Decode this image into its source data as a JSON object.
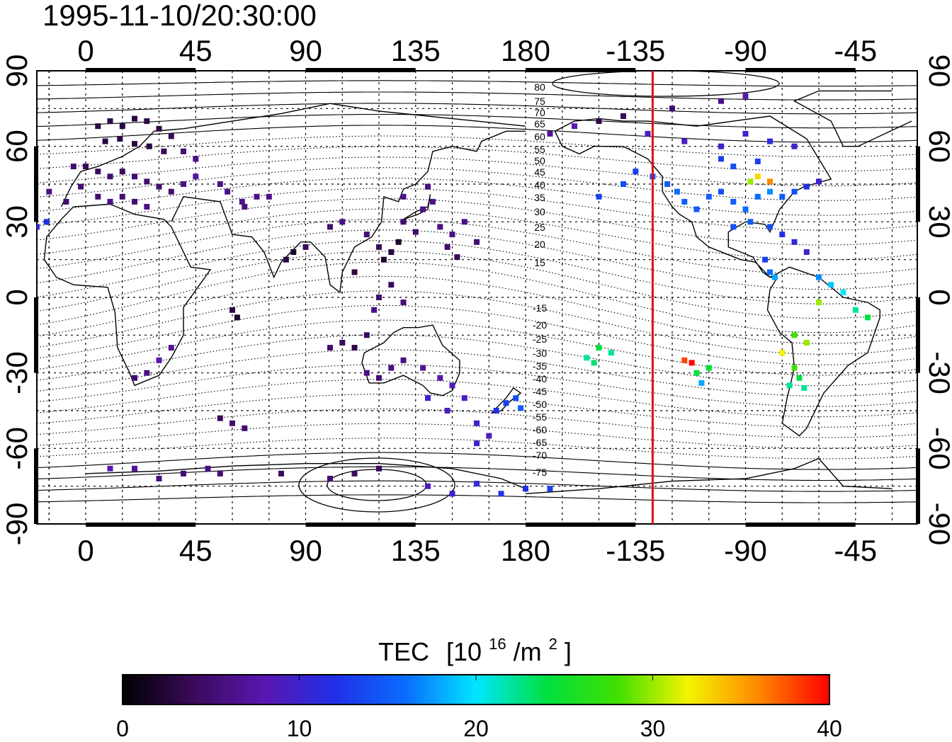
{
  "title": "1995-11-10/20:30:00",
  "colorbar": {
    "label_main": "TEC",
    "label_unit_prefix": "[10",
    "label_unit_exp": "16",
    "label_unit_mid": "/m",
    "label_unit_exp2": "2",
    "label_unit_suffix": "]",
    "min": 0,
    "max": 40,
    "ticks": [
      "0",
      "10",
      "20",
      "30",
      "40"
    ],
    "stops": [
      "#000000",
      "#3a0a5a",
      "#5a16b0",
      "#2030e8",
      "#0a6cff",
      "#00e6ff",
      "#00e040",
      "#40e000",
      "#f4f400",
      "#ff8800",
      "#ff0000"
    ]
  },
  "map": {
    "top_lon_labels": [
      "0",
      "45",
      "90",
      "135",
      "180",
      "-135",
      "-90",
      "-45"
    ],
    "bottom_lon_labels": [
      "0",
      "45",
      "90",
      "135",
      "180",
      "-135",
      "-90",
      "-45"
    ],
    "left_lat_labels": [
      "90",
      "60",
      "30",
      "0",
      "-30",
      "-60",
      "-90"
    ],
    "right_lat_labels": [
      "90",
      "60",
      "30",
      "0",
      "-30",
      "-60",
      "-90"
    ],
    "contour_labels": [
      "80",
      "75",
      "70",
      "65",
      "60",
      "55",
      "50",
      "45",
      "40",
      "35",
      "30",
      "25",
      "20",
      "15",
      "-15",
      "-20",
      "-25",
      "-30",
      "-35",
      "-40",
      "-45",
      "-50",
      "-55",
      "-60",
      "-65",
      "-70",
      "-75"
    ],
    "terminator_lon": -128,
    "terminator_color": "#e01010"
  },
  "chart_data": {
    "type": "scatter",
    "title": "1995-11-10/20:30:00",
    "xlabel": "",
    "ylabel": "",
    "xlim_lon": [
      -20,
      -35
    ],
    "ylim": [
      -90,
      90
    ],
    "value_label": "TEC [10^16/m^2]",
    "value_range": [
      0,
      40
    ],
    "points": [
      [
        5,
        68,
        3
      ],
      [
        10,
        70,
        3
      ],
      [
        15,
        68,
        3
      ],
      [
        20,
        71,
        3
      ],
      [
        25,
        70,
        3
      ],
      [
        30,
        67,
        3
      ],
      [
        35,
        64,
        4
      ],
      [
        8,
        62,
        3
      ],
      [
        14,
        63,
        3
      ],
      [
        20,
        61,
        3
      ],
      [
        26,
        60,
        3
      ],
      [
        32,
        58,
        4
      ],
      [
        40,
        58,
        5
      ],
      [
        45,
        55,
        6
      ],
      [
        -5,
        52,
        5
      ],
      [
        0,
        52,
        4
      ],
      [
        5,
        50,
        4
      ],
      [
        10,
        48,
        5
      ],
      [
        15,
        50,
        4
      ],
      [
        20,
        48,
        5
      ],
      [
        25,
        46,
        5
      ],
      [
        30,
        44,
        5
      ],
      [
        35,
        42,
        5
      ],
      [
        40,
        45,
        6
      ],
      [
        45,
        48,
        7
      ],
      [
        -2,
        44,
        5
      ],
      [
        5,
        40,
        5
      ],
      [
        10,
        38,
        6
      ],
      [
        15,
        40,
        5
      ],
      [
        20,
        38,
        5
      ],
      [
        25,
        36,
        6
      ],
      [
        -8,
        38,
        5
      ],
      [
        -15,
        42,
        6
      ],
      [
        -20,
        28,
        11
      ],
      [
        -16,
        30,
        12
      ],
      [
        70,
        40,
        6
      ],
      [
        64,
        38,
        6
      ],
      [
        58,
        42,
        6
      ],
      [
        65,
        36,
        6
      ],
      [
        75,
        40,
        6
      ],
      [
        55,
        45,
        6
      ],
      [
        85,
        18,
        2
      ],
      [
        82,
        15,
        3
      ],
      [
        90,
        20,
        4
      ],
      [
        100,
        28,
        5
      ],
      [
        105,
        30,
        6
      ],
      [
        115,
        25,
        5
      ],
      [
        120,
        20,
        4
      ],
      [
        125,
        18,
        3
      ],
      [
        122,
        15,
        2
      ],
      [
        128,
        22,
        2
      ],
      [
        130,
        30,
        5
      ],
      [
        138,
        35,
        6
      ],
      [
        142,
        38,
        6
      ],
      [
        135,
        26,
        5
      ],
      [
        145,
        28,
        6
      ],
      [
        150,
        25,
        6
      ],
      [
        155,
        30,
        6
      ],
      [
        148,
        20,
        5
      ],
      [
        152,
        16,
        4
      ],
      [
        160,
        22,
        5
      ],
      [
        130,
        40,
        6
      ],
      [
        140,
        44,
        6
      ],
      [
        110,
        10,
        3
      ],
      [
        118,
        -5,
        6
      ],
      [
        120,
        0,
        5
      ],
      [
        125,
        5,
        4
      ],
      [
        130,
        -2,
        5
      ],
      [
        115,
        -15,
        4
      ],
      [
        110,
        -20,
        3
      ],
      [
        105,
        -18,
        4
      ],
      [
        100,
        -20,
        5
      ],
      [
        115,
        -30,
        6
      ],
      [
        120,
        -32,
        5
      ],
      [
        125,
        -28,
        6
      ],
      [
        130,
        -25,
        6
      ],
      [
        138,
        -28,
        7
      ],
      [
        145,
        -32,
        8
      ],
      [
        150,
        -35,
        9
      ],
      [
        140,
        -40,
        10
      ],
      [
        155,
        -40,
        9
      ],
      [
        148,
        -45,
        9
      ],
      [
        160,
        -50,
        10
      ],
      [
        168,
        -45,
        12
      ],
      [
        172,
        -42,
        13
      ],
      [
        176,
        -40,
        14
      ],
      [
        178,
        -44,
        15
      ],
      [
        165,
        -55,
        9
      ],
      [
        160,
        -58,
        10
      ],
      [
        60,
        -50,
        5
      ],
      [
        55,
        -48,
        4
      ],
      [
        65,
        -52,
        5
      ],
      [
        30,
        -25,
        8
      ],
      [
        25,
        -30,
        6
      ],
      [
        20,
        -32,
        5
      ],
      [
        35,
        -20,
        7
      ],
      [
        60,
        -5,
        3
      ],
      [
        62,
        -8,
        2
      ],
      [
        55,
        -70,
        5
      ],
      [
        50,
        -68,
        6
      ],
      [
        40,
        -70,
        5
      ],
      [
        30,
        -72,
        6
      ],
      [
        20,
        -68,
        7
      ],
      [
        10,
        -68,
        8
      ],
      [
        80,
        -70,
        4
      ],
      [
        100,
        -72,
        5
      ],
      [
        110,
        -70,
        4
      ],
      [
        120,
        -68,
        4
      ],
      [
        140,
        -75,
        9
      ],
      [
        150,
        -78,
        10
      ],
      [
        160,
        -74,
        11
      ],
      [
        170,
        -78,
        12
      ],
      [
        180,
        -76,
        12
      ],
      [
        190,
        -76,
        13
      ],
      [
        205,
        -24,
        22
      ],
      [
        210,
        -20,
        24
      ],
      [
        208,
        -26,
        23
      ],
      [
        215,
        -22,
        22
      ],
      [
        -150,
        40,
        13
      ],
      [
        -140,
        45,
        14
      ],
      [
        -135,
        50,
        13
      ],
      [
        -128,
        48,
        14
      ],
      [
        -122,
        45,
        15
      ],
      [
        -118,
        42,
        16
      ],
      [
        -115,
        38,
        15
      ],
      [
        -110,
        35,
        15
      ],
      [
        -105,
        40,
        15
      ],
      [
        -100,
        42,
        14
      ],
      [
        -95,
        38,
        15
      ],
      [
        -90,
        35,
        16
      ],
      [
        -85,
        40,
        16
      ],
      [
        -80,
        42,
        17
      ],
      [
        -75,
        40,
        15
      ],
      [
        -70,
        42,
        14
      ],
      [
        -65,
        44,
        12
      ],
      [
        -60,
        46,
        10
      ],
      [
        -88,
        46,
        30
      ],
      [
        -85,
        48,
        33
      ],
      [
        -80,
        46,
        36
      ],
      [
        -95,
        28,
        14
      ],
      [
        -88,
        30,
        15
      ],
      [
        -80,
        28,
        14
      ],
      [
        -75,
        25,
        12
      ],
      [
        -70,
        22,
        11
      ],
      [
        -65,
        18,
        10
      ],
      [
        -82,
        15,
        13
      ],
      [
        -80,
        10,
        16
      ],
      [
        -78,
        8,
        18
      ],
      [
        -60,
        8,
        17
      ],
      [
        -55,
        5,
        19
      ],
      [
        -50,
        2,
        20
      ],
      [
        -60,
        -2,
        30
      ],
      [
        -45,
        -5,
        22
      ],
      [
        -40,
        -8,
        24
      ],
      [
        -70,
        -15,
        28
      ],
      [
        -65,
        -18,
        30
      ],
      [
        -75,
        -22,
        32
      ],
      [
        -70,
        -28,
        28
      ],
      [
        -68,
        -32,
        24
      ],
      [
        -72,
        -35,
        22
      ],
      [
        -66,
        -36,
        22
      ],
      [
        -115,
        -25,
        38
      ],
      [
        -112,
        -26,
        40
      ],
      [
        -110,
        -30,
        24
      ],
      [
        -105,
        -28,
        24
      ],
      [
        -108,
        -34,
        18
      ],
      [
        -150,
        70,
        3
      ],
      [
        -140,
        72,
        4
      ],
      [
        -120,
        75,
        5
      ],
      [
        -100,
        78,
        6
      ],
      [
        -90,
        80,
        8
      ],
      [
        -130,
        65,
        9
      ],
      [
        -115,
        62,
        9
      ],
      [
        -100,
        60,
        10
      ],
      [
        -90,
        65,
        10
      ],
      [
        -80,
        62,
        11
      ],
      [
        -70,
        60,
        10
      ],
      [
        -160,
        68,
        8
      ],
      [
        -170,
        65,
        7
      ],
      [
        -100,
        55,
        13
      ],
      [
        -95,
        52,
        14
      ],
      [
        -85,
        54,
        13
      ]
    ],
    "annotations": [
      "terminator line at -128"
    ]
  }
}
